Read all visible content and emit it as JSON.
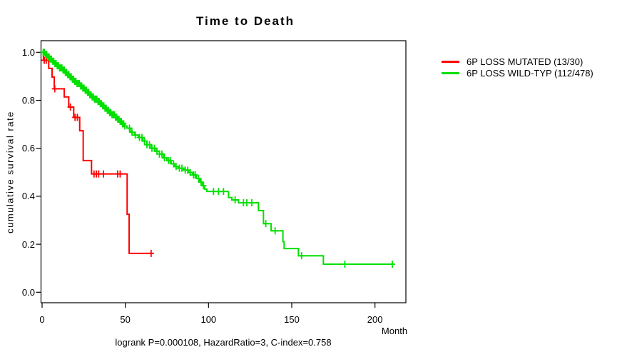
{
  "chart_data": {
    "type": "line",
    "subtype": "kaplan_meier_step_survival",
    "title": "Time to Death",
    "xlabel": "Month",
    "ylabel": "cumulative survival rate",
    "annotation": "logrank P=0.000108, HazardRatio=3, C-index=0.758",
    "xlim": [
      0,
      219
    ],
    "ylim": [
      0,
      1.04
    ],
    "x_ticks": [
      0,
      50,
      100,
      150,
      200
    ],
    "y_ticks": [
      0.0,
      0.2,
      0.4,
      0.6,
      0.8,
      1.0
    ],
    "grid": false,
    "legend_position": "right-outside",
    "series": [
      {
        "name": "6P LOSS MUTATED (13/30)",
        "color": "#FF0000",
        "end_x": 67,
        "points": [
          [
            0,
            1.0
          ],
          [
            0.8,
            0.967
          ],
          [
            4,
            0.933
          ],
          [
            6,
            0.897
          ],
          [
            7.3,
            0.848
          ],
          [
            13.3,
            0.814
          ],
          [
            16,
            0.772
          ],
          [
            19,
            0.729
          ],
          [
            22.6,
            0.673
          ],
          [
            24.7,
            0.549
          ],
          [
            29.7,
            0.493
          ],
          [
            51.1,
            0.325
          ],
          [
            52.3,
            0.162
          ]
        ],
        "censor_x": [
          1.3,
          2.5,
          7.6,
          17,
          19.8,
          21.2,
          31.2,
          32.6,
          34,
          36.9,
          45.4,
          46.9,
          65.5
        ]
      },
      {
        "name": "6P LOSS WILD-TYP (112/478)",
        "color": "#00E000",
        "end_x": 211,
        "points": [
          [
            0,
            1.0
          ],
          [
            1.5,
            0.991
          ],
          [
            3,
            0.981
          ],
          [
            4.5,
            0.972
          ],
          [
            6,
            0.963
          ],
          [
            7.5,
            0.953
          ],
          [
            9,
            0.944
          ],
          [
            10.5,
            0.935
          ],
          [
            12,
            0.926
          ],
          [
            13.5,
            0.916
          ],
          [
            15,
            0.907
          ],
          [
            16.5,
            0.898
          ],
          [
            18,
            0.888
          ],
          [
            19.5,
            0.879
          ],
          [
            21,
            0.87
          ],
          [
            22.5,
            0.86
          ],
          [
            24,
            0.851
          ],
          [
            25.5,
            0.842
          ],
          [
            27,
            0.833
          ],
          [
            28.5,
            0.823
          ],
          [
            30,
            0.814
          ],
          [
            31.5,
            0.805
          ],
          [
            33,
            0.795
          ],
          [
            34.5,
            0.786
          ],
          [
            36,
            0.777
          ],
          [
            37.5,
            0.767
          ],
          [
            39,
            0.758
          ],
          [
            40.5,
            0.749
          ],
          [
            42,
            0.74
          ],
          [
            43.5,
            0.73
          ],
          [
            45,
            0.721
          ],
          [
            46.5,
            0.712
          ],
          [
            48,
            0.702
          ],
          [
            49.5,
            0.693
          ],
          [
            51,
            0.684
          ],
          [
            53,
            0.667
          ],
          [
            55.5,
            0.655
          ],
          [
            58,
            0.645
          ],
          [
            60.5,
            0.63
          ],
          [
            63,
            0.615
          ],
          [
            65.5,
            0.6
          ],
          [
            68,
            0.588
          ],
          [
            70.5,
            0.576
          ],
          [
            73,
            0.56
          ],
          [
            75,
            0.549
          ],
          [
            77.5,
            0.535
          ],
          [
            79.5,
            0.524
          ],
          [
            82,
            0.517
          ],
          [
            85,
            0.509
          ],
          [
            88,
            0.499
          ],
          [
            90.5,
            0.489
          ],
          [
            92.6,
            0.474
          ],
          [
            94.7,
            0.459
          ],
          [
            96.1,
            0.444
          ],
          [
            97.6,
            0.43
          ],
          [
            99,
            0.42
          ],
          [
            112,
            0.395
          ],
          [
            114,
            0.385
          ],
          [
            118,
            0.373
          ],
          [
            130,
            0.34
          ],
          [
            133,
            0.286
          ],
          [
            137.6,
            0.256
          ],
          [
            144.7,
            0.211
          ],
          [
            145.4,
            0.182
          ],
          [
            154,
            0.152
          ],
          [
            169,
            0.117
          ]
        ],
        "censor_x": [
          0.7,
          1.4,
          2.1,
          2.8,
          3.5,
          4.2,
          4.9,
          5.6,
          6.3,
          7,
          7.7,
          8.4,
          9.1,
          9.8,
          10.5,
          11.2,
          11.9,
          12.6,
          13.3,
          14,
          14.7,
          15.4,
          16.1,
          16.8,
          17.5,
          18.2,
          18.9,
          19.6,
          20.3,
          21,
          21.7,
          22.4,
          23.1,
          23.8,
          24.5,
          25.2,
          25.9,
          26.6,
          27.3,
          28,
          28.7,
          29.4,
          30.1,
          30.8,
          31.5,
          32.2,
          32.9,
          33.6,
          34.3,
          35,
          35.7,
          36.4,
          37.1,
          37.8,
          38.5,
          39.2,
          39.9,
          40.6,
          41.3,
          42,
          42.7,
          43.4,
          44.1,
          44.8,
          45.5,
          46.2,
          46.9,
          47.6,
          48.3,
          49,
          49.7,
          52.5,
          54,
          56,
          58.5,
          60,
          61.5,
          63,
          64.5,
          66,
          67.5,
          69,
          70.5,
          72,
          73.5,
          76,
          77,
          79,
          80.5,
          82.5,
          84,
          86,
          87.5,
          89,
          91,
          92,
          94,
          95.5,
          97,
          103,
          106,
          109,
          116,
          121,
          123,
          126,
          134.4,
          140,
          155.9,
          181.9,
          210.4
        ]
      }
    ]
  }
}
